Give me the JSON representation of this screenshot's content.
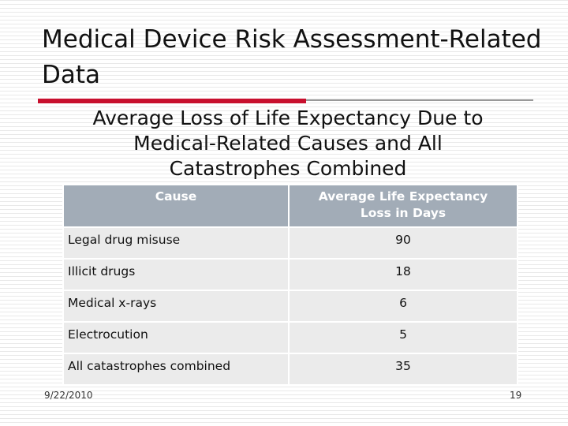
{
  "slide": {
    "title": "Medical Device Risk Assessment-Related Data",
    "subtitle_line1": "Average Loss of Life Expectancy Due to",
    "subtitle_line2": "Medical-Related Causes and All",
    "subtitle_line3": "Catastrophes Combined"
  },
  "table": {
    "headers": {
      "cause": "Cause",
      "loss_line1": "Average Life Expectancy",
      "loss_line2": "Loss in Days"
    },
    "rows": [
      {
        "cause": "Legal drug misuse",
        "loss": "90"
      },
      {
        "cause": "Illicit drugs",
        "loss": "18"
      },
      {
        "cause": "Medical x-rays",
        "loss": "6"
      },
      {
        "cause": "Electrocution",
        "loss": "5"
      },
      {
        "cause": "All catastrophes combined",
        "loss": "35"
      }
    ]
  },
  "footer": {
    "date": "9/22/2010",
    "page_number": "19"
  },
  "colors": {
    "accent_rule": "#c8102e",
    "header_fill": "#a2acb7",
    "row_fill": "#ebebeb"
  }
}
